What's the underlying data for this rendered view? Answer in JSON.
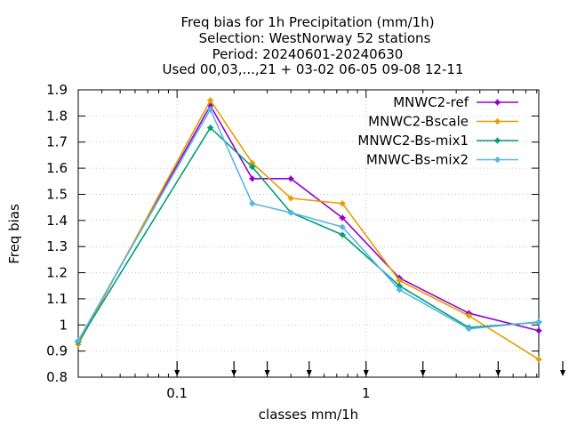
{
  "chart_data": {
    "type": "line",
    "title_lines": [
      "Freq bias  for 1h Precipitation (mm/1h)",
      "Selection: WestNorway     52 stations",
      "Period: 20240601-20240630",
      "Used 00,03,...,21 + 03-02 06-05 09-08 12-11"
    ],
    "xlabel": "classes mm/1h",
    "ylabel": "Freq bias",
    "x_scale": "log",
    "xlim": [
      0.03,
      8.2
    ],
    "ylim": [
      0.8,
      1.9
    ],
    "x_ticks": [
      0.1,
      1
    ],
    "x_tick_labels": [
      "0.1",
      "1"
    ],
    "y_ticks": [
      0.8,
      0.9,
      1,
      1.1,
      1.2,
      1.3,
      1.4,
      1.5,
      1.6,
      1.7,
      1.8,
      1.9
    ],
    "y_tick_labels": [
      "0.8",
      "0.9",
      "1",
      "1.1",
      "1.2",
      "1.3",
      "1.4",
      "1.5",
      "1.6",
      "1.7",
      "1.8",
      "1.9"
    ],
    "grid": true,
    "legend_position": "top-right",
    "arrow_markers_x": [
      0.1,
      0.2,
      0.3,
      0.5,
      1,
      2,
      5,
      10
    ],
    "series": [
      {
        "name": "MNWC2-ref",
        "color": "#9400d3",
        "x": [
          0.03,
          0.15,
          0.25,
          0.4,
          0.75,
          1.5,
          3.5,
          8.2
        ],
        "y": [
          0.935,
          1.84,
          1.56,
          1.56,
          1.41,
          1.18,
          1.045,
          0.978
        ]
      },
      {
        "name": "MNWC2-Bscale",
        "color": "#e69f00",
        "x": [
          0.03,
          0.15,
          0.25,
          0.4,
          0.75,
          1.5,
          3.5,
          8.2
        ],
        "y": [
          0.925,
          1.86,
          1.62,
          1.485,
          1.465,
          1.17,
          1.035,
          0.868
        ]
      },
      {
        "name": "MNWC2-Bs-mix1",
        "color": "#009e73",
        "x": [
          0.03,
          0.15,
          0.25,
          0.4,
          0.75,
          1.5,
          3.5,
          8.2
        ],
        "y": [
          0.935,
          1.755,
          1.605,
          1.43,
          1.345,
          1.15,
          0.99,
          1.01
        ]
      },
      {
        "name": "MNWC-Bs-mix2",
        "color": "#56b4e9",
        "x": [
          0.03,
          0.15,
          0.25,
          0.4,
          0.75,
          1.5,
          3.5,
          8.2
        ],
        "y": [
          0.94,
          1.825,
          1.465,
          1.43,
          1.375,
          1.135,
          0.985,
          1.012
        ]
      }
    ]
  }
}
